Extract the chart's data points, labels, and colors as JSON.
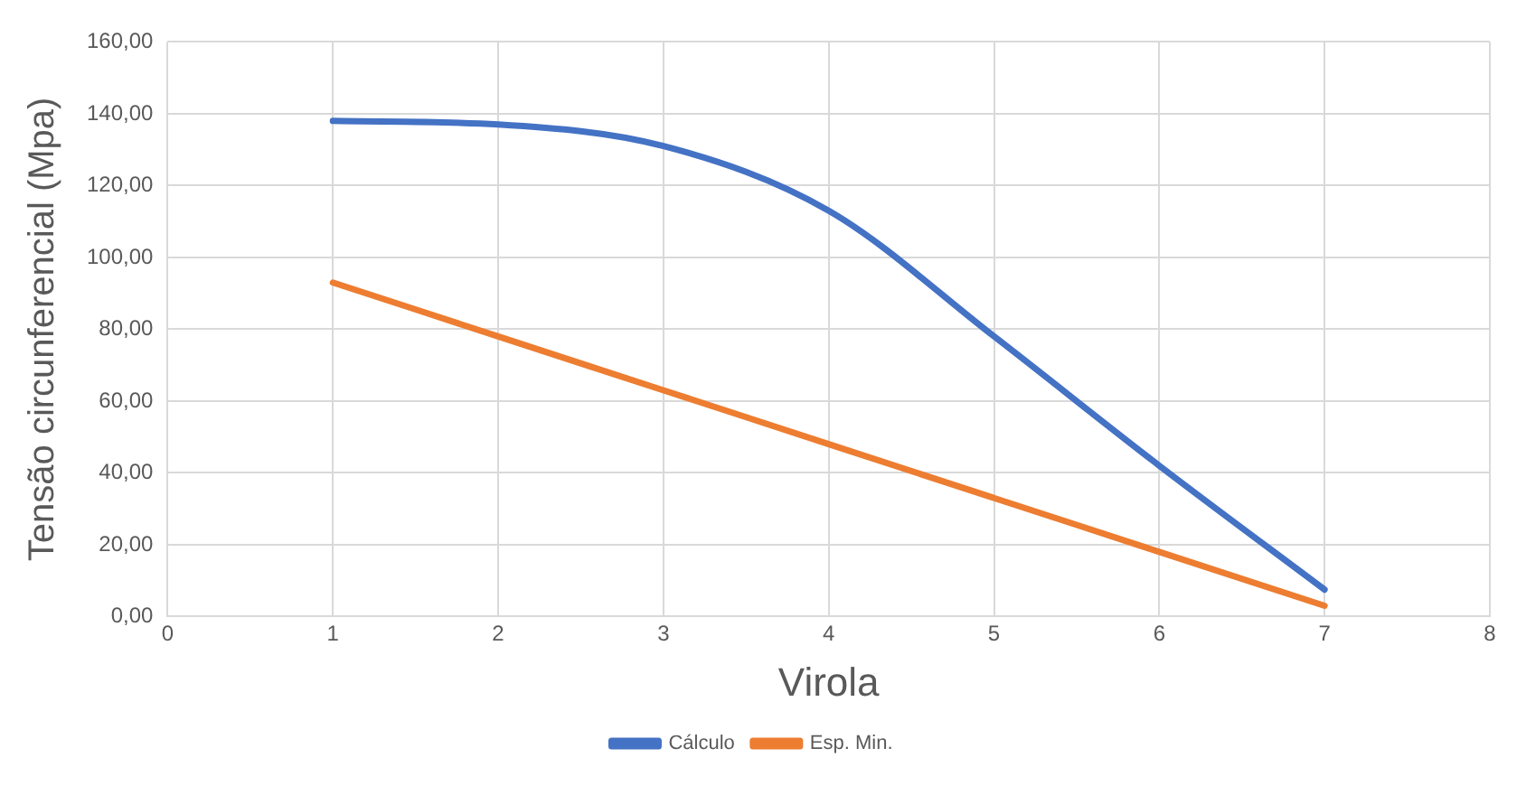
{
  "chart_data": {
    "type": "line",
    "xlabel": "Virola",
    "ylabel": "Tensão circunferencial (Mpa)",
    "x": [
      1,
      2,
      3,
      4,
      5,
      6,
      7
    ],
    "series": [
      {
        "name": "Cálculo",
        "color": "#4472c4",
        "values": [
          138,
          137,
          131,
          113,
          78,
          42,
          7.5
        ]
      },
      {
        "name": "Esp. Min.",
        "color": "#ed7d31",
        "values": [
          93,
          78,
          63,
          48,
          33,
          18,
          3
        ]
      }
    ],
    "xlim": [
      0,
      8
    ],
    "xticks": [
      0,
      1,
      2,
      3,
      4,
      5,
      6,
      7,
      8
    ],
    "ylim": [
      0,
      160
    ],
    "yticks": [
      {
        "value": 0,
        "label": "0,00"
      },
      {
        "value": 20,
        "label": "20,00"
      },
      {
        "value": 40,
        "label": "40,00"
      },
      {
        "value": 60,
        "label": "60,00"
      },
      {
        "value": 80,
        "label": "80,00"
      },
      {
        "value": 100,
        "label": "100,00"
      },
      {
        "value": 120,
        "label": "120,00"
      },
      {
        "value": 140,
        "label": "140,00"
      },
      {
        "value": 160,
        "label": "160,00"
      }
    ],
    "grid": true,
    "legend": "bottom",
    "marker": "none",
    "line_style": "solid"
  }
}
